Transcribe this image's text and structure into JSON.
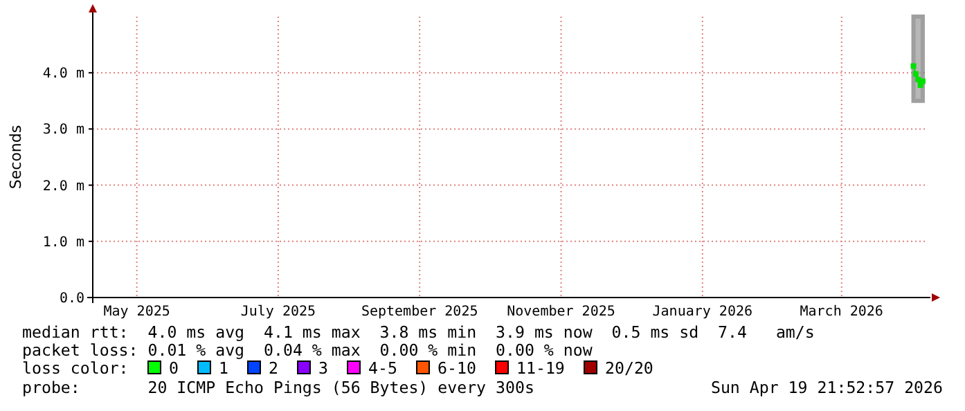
{
  "chart_data": {
    "type": "line",
    "ylabel": "Seconds",
    "x": [
      "2026-04-15",
      "2026-04-16",
      "2026-04-17",
      "2026-04-18",
      "2026-04-19"
    ],
    "series": [
      {
        "color": "#00e000",
        "values": [
          4.12,
          3.98,
          3.88,
          3.78,
          3.85
        ],
        "lower": [
          3.5,
          3.5,
          3.5,
          3.5,
          3.5
        ],
        "upper": [
          5.0,
          5.0,
          5.0,
          5.0,
          5.0
        ]
      }
    ],
    "xlim": [
      "2025-04-26",
      "2026-04-19T21:52"
    ],
    "xticks": [
      {
        "value": "2025-05-15",
        "label": "May 2025"
      },
      {
        "value": "2025-07-15",
        "label": "July 2025"
      },
      {
        "value": "2025-09-14",
        "label": "September 2025"
      },
      {
        "value": "2025-11-14",
        "label": "November 2025"
      },
      {
        "value": "2026-01-14",
        "label": "January 2026"
      },
      {
        "value": "2026-03-15",
        "label": "March 2026"
      }
    ],
    "ylim": [
      0,
      5.0
    ],
    "yticks": [
      {
        "value": 0,
        "label": "0.0"
      },
      {
        "value": 1,
        "label": "1.0 m"
      },
      {
        "value": 2,
        "label": "2.0 m"
      },
      {
        "value": 3,
        "label": "3.0 m"
      },
      {
        "value": 4,
        "label": "4.0 m"
      }
    ],
    "grid": true,
    "marker": "square",
    "line_style": "solid",
    "annotations": [
      "median rtt:  4.0 ms avg  4.1 ms max  3.8 ms min  3.9 ms now  0.5 ms sd  7.4   am/s",
      "packet loss: 0.01 % avg  0.04 % max  0.00 % min  0.00 % now",
      "loss color:",
      "0",
      "1",
      "2",
      "3",
      "4-5",
      "6-10",
      "11-19",
      "20/20",
      "probe:       20 ICMP Echo Pings (56 Bytes) every 300s",
      "Sun Apr 19 21:52:57 2026"
    ]
  }
}
